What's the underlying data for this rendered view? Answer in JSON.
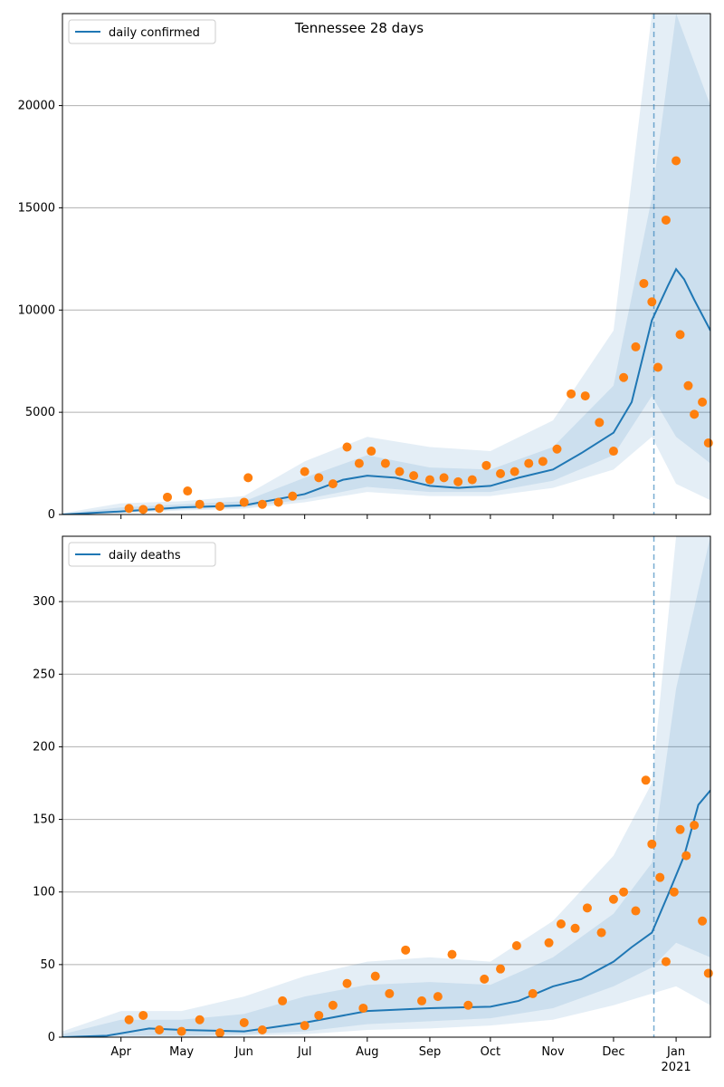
{
  "figure": {
    "title": "Tennessee 28 days"
  },
  "chart_data": [
    {
      "type": "line",
      "title": "Tennessee 28 days",
      "xlabel": "",
      "ylabel": "",
      "x_range": [
        "2020-03-03",
        "2021-01-18"
      ],
      "ylim": [
        0,
        24500
      ],
      "y_ticks": [
        0,
        5000,
        10000,
        15000,
        20000
      ],
      "x_ticks": [
        "Apr",
        "May",
        "Jun",
        "Jul",
        "Aug",
        "Sep",
        "Oct",
        "Nov",
        "Dec",
        "Jan"
      ],
      "x_tick_dates": [
        "2020-04-01",
        "2020-05-01",
        "2020-06-01",
        "2020-07-01",
        "2020-08-01",
        "2020-09-01",
        "2020-10-01",
        "2020-11-01",
        "2020-12-01",
        "2021-01-01"
      ],
      "x_tick_sublabel": "2021",
      "grid": "horizontal",
      "legend": {
        "position": "top-left",
        "entries": [
          "daily confirmed"
        ]
      },
      "forecast_start": "2020-12-21",
      "colors": {
        "line": "#1f77b4",
        "band": "#1f77b4",
        "points": "#ff7f0e"
      },
      "fit_line": {
        "name": "daily confirmed",
        "x": [
          "2020-03-03",
          "2020-04-01",
          "2020-05-01",
          "2020-06-01",
          "2020-07-01",
          "2020-07-20",
          "2020-08-01",
          "2020-08-15",
          "2020-09-01",
          "2020-09-15",
          "2020-10-01",
          "2020-10-15",
          "2020-11-01",
          "2020-11-15",
          "2020-12-01",
          "2020-12-10",
          "2020-12-20",
          "2020-12-28",
          "2021-01-01",
          "2021-01-05",
          "2021-01-10",
          "2021-01-18"
        ],
        "y": [
          0,
          150,
          350,
          450,
          1000,
          1700,
          1900,
          1800,
          1400,
          1300,
          1400,
          1800,
          2200,
          3000,
          4000,
          5500,
          9500,
          11200,
          12000,
          11500,
          10500,
          9000
        ]
      },
      "bands": [
        {
          "x": [
            "2020-03-03",
            "2020-04-01",
            "2020-05-01",
            "2020-06-01",
            "2020-07-01",
            "2020-08-01",
            "2020-09-01",
            "2020-10-01",
            "2020-11-01",
            "2020-12-01",
            "2020-12-20",
            "2021-01-01",
            "2021-01-18"
          ],
          "lower": [
            0,
            60,
            200,
            280,
            600,
            1100,
            900,
            900,
            1300,
            2200,
            3800,
            1500,
            700
          ],
          "upper": [
            60,
            550,
            650,
            900,
            2600,
            3800,
            3300,
            3100,
            4600,
            9000,
            24500,
            24500,
            24500
          ]
        },
        {
          "x": [
            "2020-03-03",
            "2020-04-01",
            "2020-05-01",
            "2020-06-01",
            "2020-07-01",
            "2020-08-01",
            "2020-09-01",
            "2020-10-01",
            "2020-11-01",
            "2020-12-01",
            "2020-12-20",
            "2021-01-01",
            "2021-01-18"
          ],
          "lower": [
            0,
            100,
            260,
            350,
            750,
            1350,
            1100,
            1100,
            1650,
            2900,
            5800,
            3800,
            2500
          ],
          "upper": [
            30,
            350,
            500,
            650,
            1800,
            2900,
            2300,
            2200,
            3300,
            6300,
            15500,
            24500,
            20000
          ]
        }
      ],
      "observed": {
        "x": [
          "2020-04-05",
          "2020-04-12",
          "2020-04-20",
          "2020-04-24",
          "2020-05-04",
          "2020-05-10",
          "2020-05-20",
          "2020-06-01",
          "2020-06-03",
          "2020-06-10",
          "2020-06-18",
          "2020-06-25",
          "2020-07-01",
          "2020-07-08",
          "2020-07-15",
          "2020-07-22",
          "2020-07-28",
          "2020-08-03",
          "2020-08-10",
          "2020-08-17",
          "2020-08-24",
          "2020-09-01",
          "2020-09-08",
          "2020-09-15",
          "2020-09-22",
          "2020-09-29",
          "2020-10-06",
          "2020-10-13",
          "2020-10-20",
          "2020-10-27",
          "2020-11-03",
          "2020-11-10",
          "2020-11-17",
          "2020-11-24",
          "2020-12-01",
          "2020-12-06",
          "2020-12-12",
          "2020-12-16",
          "2020-12-20",
          "2020-12-23",
          "2020-12-27",
          "2021-01-01",
          "2021-01-03",
          "2021-01-07",
          "2021-01-10",
          "2021-01-14",
          "2021-01-17"
        ],
        "y": [
          300,
          250,
          300,
          850,
          1150,
          500,
          400,
          600,
          1800,
          500,
          600,
          900,
          2100,
          1800,
          1500,
          3300,
          2500,
          3100,
          2500,
          2100,
          1900,
          1700,
          1800,
          1600,
          1700,
          2400,
          2000,
          2100,
          2500,
          2600,
          3200,
          5900,
          5800,
          4500,
          3100,
          6700,
          8200,
          11300,
          10400,
          7200,
          14400,
          17300,
          8800,
          6300,
          4900,
          5500,
          3500
        ]
      }
    },
    {
      "type": "line",
      "title": "",
      "xlabel": "",
      "ylabel": "",
      "x_range": [
        "2020-03-03",
        "2021-01-18"
      ],
      "ylim": [
        0,
        345
      ],
      "y_ticks": [
        0,
        50,
        100,
        150,
        200,
        250,
        300
      ],
      "x_ticks": [
        "Apr",
        "May",
        "Jun",
        "Jul",
        "Aug",
        "Sep",
        "Oct",
        "Nov",
        "Dec",
        "Jan"
      ],
      "x_tick_dates": [
        "2020-04-01",
        "2020-05-01",
        "2020-06-01",
        "2020-07-01",
        "2020-08-01",
        "2020-09-01",
        "2020-10-01",
        "2020-11-01",
        "2020-12-01",
        "2021-01-01"
      ],
      "x_tick_sublabel": "2021",
      "grid": "horizontal",
      "legend": {
        "position": "top-left",
        "entries": [
          "daily deaths"
        ]
      },
      "forecast_start": "2020-12-21",
      "colors": {
        "line": "#1f77b4",
        "band": "#1f77b4",
        "points": "#ff7f0e"
      },
      "fit_line": {
        "name": "daily deaths",
        "x": [
          "2020-03-03",
          "2020-03-25",
          "2020-04-15",
          "2020-05-01",
          "2020-06-01",
          "2020-07-01",
          "2020-08-01",
          "2020-09-01",
          "2020-10-01",
          "2020-10-15",
          "2020-11-01",
          "2020-11-15",
          "2020-12-01",
          "2020-12-10",
          "2020-12-20",
          "2020-12-28",
          "2021-01-05",
          "2021-01-12",
          "2021-01-18"
        ],
        "y": [
          0,
          1,
          6,
          5,
          4,
          10,
          18,
          20,
          21,
          25,
          35,
          40,
          52,
          62,
          72,
          98,
          125,
          160,
          170
        ]
      },
      "bands": [
        {
          "x": [
            "2020-03-03",
            "2020-04-01",
            "2020-05-01",
            "2020-06-01",
            "2020-07-01",
            "2020-08-01",
            "2020-09-01",
            "2020-10-01",
            "2020-11-01",
            "2020-12-01",
            "2020-12-20",
            "2021-01-01",
            "2021-01-18"
          ],
          "lower": [
            0,
            0,
            0,
            1,
            2,
            5,
            6,
            8,
            12,
            22,
            30,
            35,
            22
          ],
          "upper": [
            4,
            18,
            18,
            28,
            42,
            52,
            55,
            52,
            80,
            125,
            175,
            345,
            345
          ]
        },
        {
          "x": [
            "2020-03-03",
            "2020-04-01",
            "2020-05-01",
            "2020-06-01",
            "2020-07-01",
            "2020-08-01",
            "2020-09-01",
            "2020-10-01",
            "2020-11-01",
            "2020-12-01",
            "2020-12-20",
            "2021-01-01",
            "2021-01-18"
          ],
          "lower": [
            0,
            1,
            1,
            2,
            4,
            9,
            11,
            13,
            20,
            35,
            48,
            65,
            55
          ],
          "upper": [
            2,
            12,
            12,
            16,
            28,
            36,
            38,
            36,
            55,
            85,
            120,
            240,
            345
          ]
        }
      ],
      "observed": {
        "x": [
          "2020-04-05",
          "2020-04-12",
          "2020-04-20",
          "2020-05-01",
          "2020-05-10",
          "2020-05-20",
          "2020-06-01",
          "2020-06-10",
          "2020-06-20",
          "2020-07-01",
          "2020-07-08",
          "2020-07-15",
          "2020-07-22",
          "2020-07-30",
          "2020-08-05",
          "2020-08-12",
          "2020-08-20",
          "2020-08-28",
          "2020-09-05",
          "2020-09-12",
          "2020-09-20",
          "2020-09-28",
          "2020-10-06",
          "2020-10-14",
          "2020-10-22",
          "2020-10-30",
          "2020-11-05",
          "2020-11-12",
          "2020-11-18",
          "2020-11-25",
          "2020-12-01",
          "2020-12-06",
          "2020-12-12",
          "2020-12-17",
          "2020-12-20",
          "2020-12-24",
          "2020-12-27",
          "2020-12-31",
          "2021-01-03",
          "2021-01-06",
          "2021-01-10",
          "2021-01-14",
          "2021-01-17"
        ],
        "y": [
          12,
          15,
          5,
          4,
          12,
          3,
          10,
          5,
          25,
          8,
          15,
          22,
          37,
          20,
          42,
          30,
          60,
          25,
          28,
          57,
          22,
          40,
          47,
          63,
          30,
          65,
          78,
          75,
          89,
          72,
          95,
          100,
          87,
          177,
          133,
          110,
          52,
          100,
          143,
          125,
          146,
          80,
          44
        ]
      }
    }
  ]
}
